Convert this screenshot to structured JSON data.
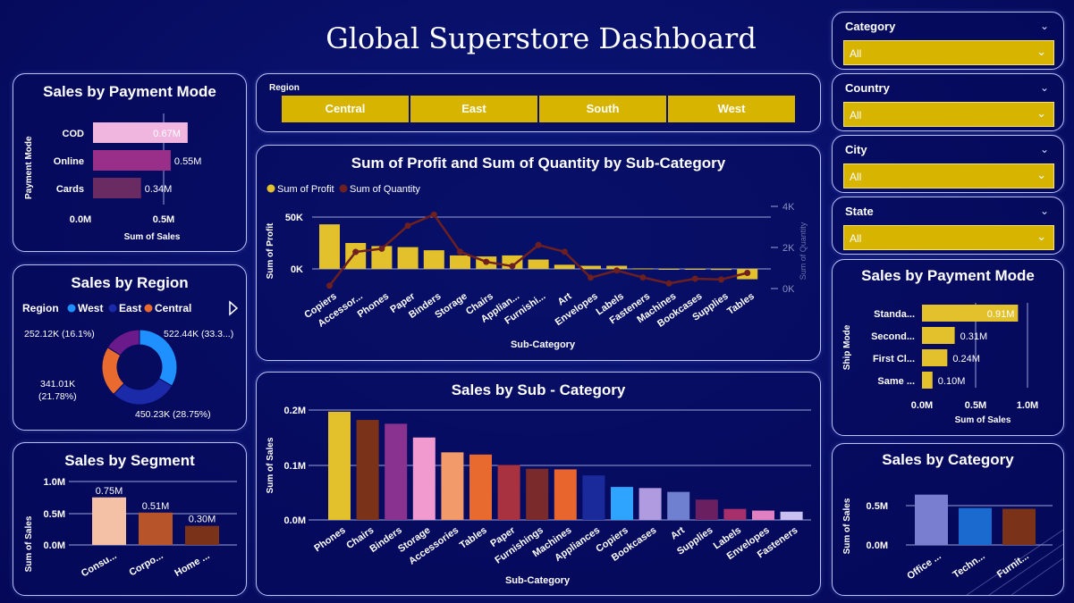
{
  "title": "Global Superstore Dashboard",
  "colors": {
    "gold": "#e2c12c",
    "panel_border": "#b9c2ff",
    "background": "#060a5a"
  },
  "payment_mode": {
    "title": "Sales by Payment Mode",
    "ylabel": "Payment Mode",
    "xlabel": "Sum of Sales",
    "ticks": [
      "0.0M",
      "0.5M"
    ],
    "items": [
      {
        "label": "COD",
        "value_label": "0.67M"
      },
      {
        "label": "Online",
        "value_label": "0.55M"
      },
      {
        "label": "Cards",
        "value_label": "0.34M"
      }
    ]
  },
  "region_chart": {
    "title": "Sales by Region",
    "legend_title": "Region",
    "legend": [
      "West",
      "East",
      "Central"
    ],
    "labels": [
      "522.44K (33.3...)",
      "450.23K (28.75%)",
      "341.01K",
      "(21.78%)",
      "252.12K (16.1%)"
    ]
  },
  "segment": {
    "title": "Sales by Segment",
    "ylabel": "Sum of Sales",
    "ticks": [
      "1.0M",
      "0.5M",
      "0.0M"
    ],
    "items": [
      {
        "label": "Consu...",
        "value_label": "0.75M"
      },
      {
        "label": "Corpo...",
        "value_label": "0.51M"
      },
      {
        "label": "Home ...",
        "value_label": "0.30M"
      }
    ]
  },
  "region_slicer": {
    "title": "Region",
    "buttons": [
      "Central",
      "East",
      "South",
      "West"
    ]
  },
  "profit_qty": {
    "title": "Sum of Profit and Sum of Quantity by Sub-Category",
    "legend": [
      "Sum of Profit",
      "Sum of Quantity"
    ],
    "ylabel": "Sum of Profit",
    "y2label": "Sum of Quantity",
    "xlabel": "Sub-Category",
    "yticks": [
      "50K",
      "0K"
    ],
    "y2ticks": [
      "4K",
      "2K",
      "0K"
    ],
    "categories": [
      "Copiers",
      "Accessor...",
      "Phones",
      "Paper",
      "Binders",
      "Storage",
      "Chairs",
      "Applian...",
      "Furnishi...",
      "Art",
      "Envelopes",
      "Labels",
      "Fasteners",
      "Machines",
      "Bookcases",
      "Supplies",
      "Tables"
    ]
  },
  "subcat": {
    "title": "Sales by Sub - Category",
    "ylabel": "Sum of Sales",
    "xlabel": "Sub-Category",
    "yticks": [
      "0.2M",
      "0.1M",
      "0.0M"
    ],
    "categories": [
      "Phones",
      "Chairs",
      "Binders",
      "Storage",
      "Accessories",
      "Tables",
      "Paper",
      "Furnishings",
      "Machines",
      "Appliances",
      "Copiers",
      "Bookcases",
      "Art",
      "Supplies",
      "Labels",
      "Envelopes",
      "Fasteners"
    ]
  },
  "slicers": [
    {
      "title": "Category",
      "value": "All"
    },
    {
      "title": "Country",
      "value": "All"
    },
    {
      "title": "City",
      "value": "All"
    },
    {
      "title": "State",
      "value": "All"
    }
  ],
  "ship_mode": {
    "title": "Sales by Payment Mode",
    "ylabel": "Ship Mode",
    "xlabel": "Sum of Sales",
    "ticks": [
      "0.0M",
      "0.5M",
      "1.0M"
    ],
    "items": [
      {
        "label": "Standa...",
        "value_label": "0.91M"
      },
      {
        "label": "Second...",
        "value_label": "0.31M"
      },
      {
        "label": "First Cl...",
        "value_label": "0.24M"
      },
      {
        "label": "Same ...",
        "value_label": "0.10M"
      }
    ]
  },
  "category": {
    "title": "Sales by Category",
    "ylabel": "Sum of Sales",
    "ticks": [
      "0.5M",
      "0.0M"
    ],
    "items": [
      {
        "label": "Office ..."
      },
      {
        "label": "Techn..."
      },
      {
        "label": "Furnit..."
      }
    ]
  },
  "chart_data": [
    {
      "type": "bar",
      "title": "Sales by Payment Mode",
      "categories": [
        "COD",
        "Online",
        "Cards"
      ],
      "values": [
        0.67,
        0.55,
        0.34
      ],
      "xlabel": "Sum of Sales",
      "ylabel": "Payment Mode",
      "xlim": [
        0,
        0.8
      ],
      "colors": [
        "#f0b6e0",
        "#9a2f8a",
        "#6a2a62"
      ]
    },
    {
      "type": "pie",
      "title": "Sales by Region",
      "categories": [
        "West",
        "East",
        "Central",
        "South"
      ],
      "values": [
        522.44,
        450.23,
        341.01,
        252.12
      ],
      "colors": [
        "#1e90ff",
        "#1a2aa8",
        "#e86a2e",
        "#6a1a8a"
      ]
    },
    {
      "type": "bar",
      "title": "Sales by Segment",
      "categories": [
        "Consu...",
        "Corpo...",
        "Home ..."
      ],
      "values": [
        0.75,
        0.51,
        0.3
      ],
      "ylabel": "Sum of Sales",
      "ylim": [
        0,
        1.0
      ],
      "colors": [
        "#f4c0a6",
        "#b8542a",
        "#7a3218"
      ]
    },
    {
      "type": "bar",
      "title": "Sum of Profit and Sum of Quantity by Sub-Category",
      "categories": [
        "Copiers",
        "Accessor...",
        "Phones",
        "Paper",
        "Binders",
        "Storage",
        "Chairs",
        "Applian...",
        "Furnishi...",
        "Art",
        "Envelopes",
        "Labels",
        "Fasteners",
        "Machines",
        "Bookcases",
        "Supplies",
        "Tables"
      ],
      "series": [
        {
          "name": "Sum of Profit",
          "values": [
            43,
            25,
            22,
            21,
            18,
            13,
            12,
            13,
            9,
            4,
            3,
            3,
            0.5,
            0,
            0,
            -1,
            -10
          ]
        },
        {
          "name": "Sum of Quantity",
          "values": [
            140,
            1780,
            1940,
            3060,
            3600,
            1790,
            1300,
            1090,
            2120,
            1790,
            530,
            880,
            540,
            250,
            480,
            440,
            760
          ]
        }
      ],
      "ylim": [
        -20,
        70
      ],
      "y2lim": [
        -400,
        5000
      ]
    },
    {
      "type": "bar",
      "title": "Sales by Sub - Category",
      "categories": [
        "Phones",
        "Chairs",
        "Binders",
        "Storage",
        "Accessories",
        "Tables",
        "Paper",
        "Furnishings",
        "Machines",
        "Appliances",
        "Copiers",
        "Bookcases",
        "Art",
        "Supplies",
        "Labels",
        "Envelopes",
        "Fasteners"
      ],
      "values": [
        0.197,
        0.182,
        0.175,
        0.15,
        0.123,
        0.119,
        0.1,
        0.093,
        0.092,
        0.081,
        0.06,
        0.058,
        0.051,
        0.037,
        0.02,
        0.017,
        0.015
      ],
      "ylabel": "Sum of Sales",
      "xlabel": "Sub-Category",
      "ylim": [
        0,
        0.2
      ],
      "colors": [
        "#e2c12c",
        "#7a3218",
        "#8a3290",
        "#f09ad0",
        "#f29a6a",
        "#e86a2e",
        "#a83240",
        "#7a2a2a",
        "#e8662e",
        "#1a2a9a",
        "#2ea4ff",
        "#b09ae0",
        "#7080d0",
        "#6a2060",
        "#a8306a",
        "#e080c0",
        "#c8c0f0"
      ]
    },
    {
      "type": "bar",
      "title": "Sales by Payment Mode",
      "categories": [
        "Standa...",
        "Second...",
        "First Cl...",
        "Same ..."
      ],
      "values": [
        0.91,
        0.31,
        0.24,
        0.1
      ],
      "xlabel": "Sum of Sales",
      "ylabel": "Ship Mode",
      "xlim": [
        0,
        1.0
      ]
    },
    {
      "type": "bar",
      "title": "Sales by Category",
      "categories": [
        "Office ...",
        "Techn...",
        "Furnit..."
      ],
      "values": [
        0.64,
        0.47,
        0.46
      ],
      "ylabel": "Sum of Sales",
      "ylim": [
        0,
        0.9
      ],
      "colors": [
        "#7a7ed0",
        "#1a6ad0",
        "#7a3218"
      ]
    }
  ]
}
